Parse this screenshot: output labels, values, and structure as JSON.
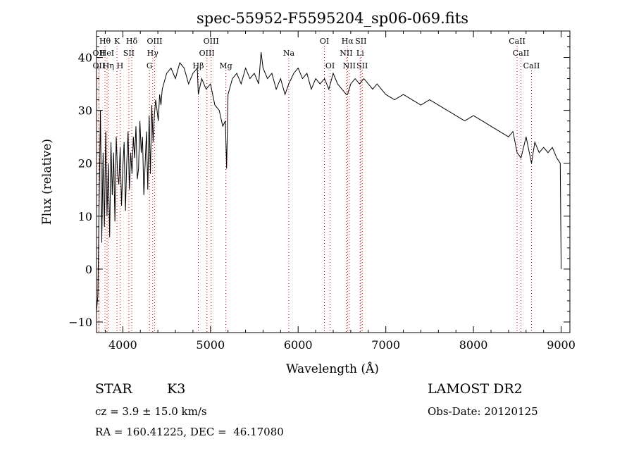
{
  "chart_data": {
    "type": "line",
    "title": "spec-55952-F5595204_sp06-069.fits",
    "xlabel": "Wavelength (Å)",
    "ylabel": "Flux (relative)",
    "xlim": [
      3700,
      9100
    ],
    "ylim": [
      -12,
      45
    ],
    "x_ticks": [
      4000,
      5000,
      6000,
      7000,
      8000,
      9000
    ],
    "x_tick_labels": [
      "4000",
      "5000",
      "6000",
      "7000",
      "8000",
      "9000"
    ],
    "y_ticks": [
      -10,
      0,
      10,
      20,
      30,
      40
    ],
    "y_tick_labels": [
      "−10",
      "0",
      "10",
      "20",
      "30",
      "40"
    ],
    "line_color": "#000000",
    "marker_color": "#cc0000",
    "series": [
      {
        "x": [
          3700,
          3715,
          3730,
          3745,
          3760,
          3775,
          3790,
          3805,
          3820,
          3835,
          3850,
          3865,
          3880,
          3895,
          3910,
          3925,
          3940,
          3955,
          3970,
          3985,
          4000,
          4015,
          4030,
          4045,
          4060,
          4075,
          4090,
          4105,
          4120,
          4135,
          4150,
          4165,
          4180,
          4195,
          4210,
          4225,
          4240,
          4255,
          4270,
          4285,
          4300,
          4315,
          4330,
          4345,
          4360,
          4375,
          4390,
          4405,
          4420,
          4435,
          4450,
          4500,
          4550,
          4600,
          4650,
          4700,
          4750,
          4800,
          4850,
          4861,
          4900,
          4950,
          5000,
          5050,
          5100,
          5140,
          5170,
          5184,
          5200,
          5250,
          5300,
          5350,
          5400,
          5450,
          5500,
          5550,
          5577,
          5600,
          5650,
          5700,
          5750,
          5800,
          5850,
          5893,
          5950,
          6000,
          6050,
          6100,
          6150,
          6200,
          6250,
          6300,
          6350,
          6400,
          6450,
          6500,
          6550,
          6563,
          6600,
          6650,
          6700,
          6750,
          6800,
          6850,
          6900,
          6950,
          7000,
          7100,
          7200,
          7300,
          7400,
          7500,
          7600,
          7700,
          7800,
          7900,
          8000,
          8100,
          8200,
          8300,
          8400,
          8450,
          8498,
          8542,
          8600,
          8662,
          8700,
          8750,
          8800,
          8850,
          8900,
          8950,
          8990,
          9000
        ],
        "y": [
          -8,
          -5,
          12,
          30,
          5,
          22,
          8,
          26,
          10,
          20,
          6,
          24,
          14,
          22,
          9,
          25,
          18,
          16,
          23,
          12,
          19,
          24,
          11,
          20,
          26,
          15,
          22,
          18,
          25,
          21,
          27,
          17,
          19,
          28,
          22,
          25,
          14,
          20,
          26,
          15,
          29,
          18,
          31,
          24,
          29,
          32,
          30,
          28,
          33,
          31,
          34,
          37,
          38,
          36,
          39,
          38,
          35,
          37,
          38,
          33,
          36,
          34,
          35,
          31,
          30,
          27,
          28,
          19,
          33,
          36,
          37,
          35,
          38,
          36,
          37,
          35,
          41,
          38,
          36,
          37,
          34,
          36,
          33,
          35,
          37,
          38,
          36,
          37,
          34,
          36,
          35,
          36,
          34,
          37,
          35,
          34,
          33,
          33,
          35,
          36,
          35,
          36,
          35,
          34,
          35,
          34,
          33,
          32,
          33,
          32,
          31,
          32,
          31,
          30,
          29,
          28,
          29,
          28,
          27,
          26,
          25,
          26,
          22,
          21,
          25,
          20,
          24,
          22,
          23,
          22,
          23,
          21,
          20,
          0
        ]
      }
    ],
    "line_markers": [
      {
        "label": "Hθ",
        "x": 3797,
        "row": 1
      },
      {
        "label": "K",
        "x": 3934,
        "row": 1
      },
      {
        "label": "Hδ",
        "x": 4102,
        "row": 1
      },
      {
        "label": "OII",
        "x": 3727,
        "row": 2
      },
      {
        "label": "HeI",
        "x": 3820,
        "row": 2
      },
      {
        "label": "SII",
        "x": 4069,
        "row": 2
      },
      {
        "label": "OII",
        "x": 3727,
        "row": 3
      },
      {
        "label": "Hη",
        "x": 3835,
        "row": 3
      },
      {
        "label": "H",
        "x": 3969,
        "row": 3
      },
      {
        "label": "OIII",
        "x": 4363,
        "row": 1
      },
      {
        "label": "Hγ",
        "x": 4341,
        "row": 2
      },
      {
        "label": "G",
        "x": 4305,
        "row": 3
      },
      {
        "label": "OIII",
        "x": 5007,
        "row": 1
      },
      {
        "label": "OIII",
        "x": 4959,
        "row": 2
      },
      {
        "label": "Hβ",
        "x": 4861,
        "row": 3
      },
      {
        "label": "Mg",
        "x": 5175,
        "row": 3
      },
      {
        "label": "Na",
        "x": 5893,
        "row": 2
      },
      {
        "label": "OI",
        "x": 6300,
        "row": 1
      },
      {
        "label": "OI",
        "x": 6364,
        "row": 3
      },
      {
        "label": "Hα",
        "x": 6563,
        "row": 1
      },
      {
        "label": "SII",
        "x": 6716,
        "row": 1
      },
      {
        "label": "NII",
        "x": 6548,
        "row": 2
      },
      {
        "label": "Li",
        "x": 6708,
        "row": 2
      },
      {
        "label": "NII",
        "x": 6583,
        "row": 3
      },
      {
        "label": "SII",
        "x": 6731,
        "row": 3
      },
      {
        "label": "CaII",
        "x": 8498,
        "row": 1
      },
      {
        "label": "CaII",
        "x": 8542,
        "row": 2
      },
      {
        "label": "CaII",
        "x": 8662,
        "row": 3
      }
    ]
  },
  "info": {
    "object_class": "STAR",
    "subclass": "K3",
    "survey": "LAMOST DR2",
    "cz": "cz = 3.9 ± 15.0 km/s",
    "obs_date": "Obs-Date: 20120125",
    "coords": "RA = 160.41225, DEC =  46.17080"
  }
}
